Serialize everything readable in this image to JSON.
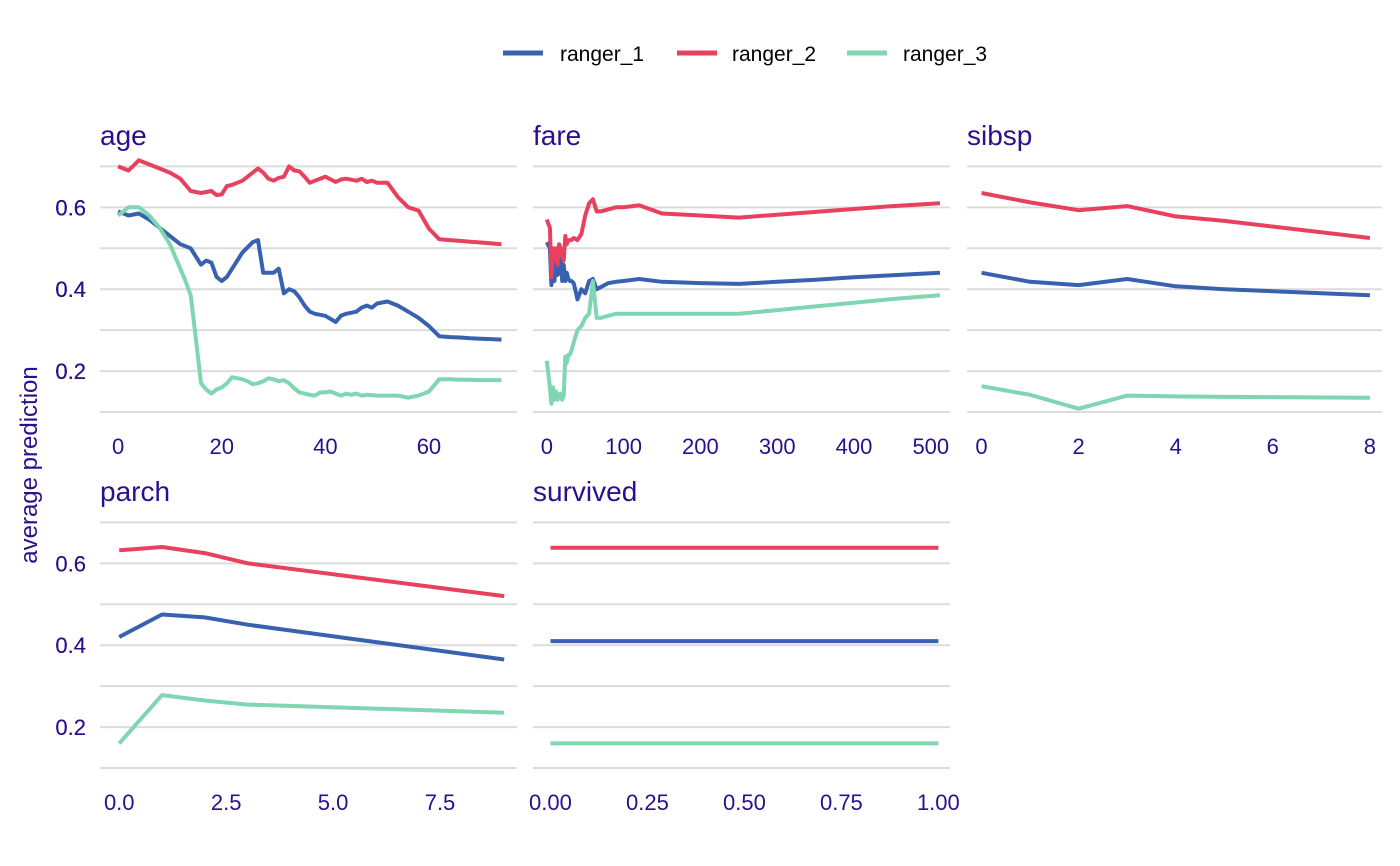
{
  "chart_data": {
    "type": "line",
    "ylabel": "average prediction",
    "legend": {
      "position": "top",
      "entries": [
        {
          "name": "ranger_1",
          "color": "#3862b0"
        },
        {
          "name": "ranger_2",
          "color": "#e8405f"
        },
        {
          "name": "ranger_3",
          "color": "#7fd6b0"
        }
      ]
    },
    "ylim": [
      0.1,
      0.745
    ],
    "y_ticks": [
      0.2,
      0.4,
      0.6
    ],
    "y_tick_labels": [
      "0.2",
      "0.4",
      "0.6"
    ],
    "grid": true,
    "panels": [
      {
        "title": "age",
        "xlim": [
          -3.5,
          77
        ],
        "x_ticks": [
          0,
          20,
          40,
          60
        ],
        "x_tick_labels": [
          "0",
          "20",
          "40",
          "60"
        ],
        "series": [
          {
            "name": "ranger_1",
            "x": [
              0,
              2,
              4,
              6,
              8,
              10,
              12,
              14,
              16,
              17,
              18,
              19,
              20,
              21,
              22,
              24,
              26,
              27,
              28,
              29,
              30,
              31,
              32,
              33,
              34,
              35,
              36,
              37,
              38,
              40,
              42,
              43,
              44,
              46,
              47,
              48,
              49,
              50,
              52,
              54,
              56,
              58,
              60,
              62,
              64,
              66,
              68,
              70,
              72,
              74
            ],
            "y": [
              0.59,
              0.58,
              0.585,
              0.57,
              0.55,
              0.53,
              0.51,
              0.5,
              0.46,
              0.47,
              0.465,
              0.43,
              0.42,
              0.43,
              0.45,
              0.49,
              0.515,
              0.52,
              0.44,
              0.44,
              0.44,
              0.45,
              0.39,
              0.4,
              0.395,
              0.38,
              0.36,
              0.345,
              0.34,
              0.335,
              0.32,
              0.335,
              0.34,
              0.345,
              0.355,
              0.36,
              0.355,
              0.365,
              0.37,
              0.36,
              0.345,
              0.33,
              0.31,
              0.285,
              0.283,
              0.282,
              0.28,
              0.279,
              0.278,
              0.277
            ]
          },
          {
            "name": "ranger_2",
            "x": [
              0,
              2,
              4,
              6,
              8,
              10,
              12,
              14,
              16,
              18,
              19,
              20,
              21,
              22,
              24,
              26,
              27,
              28,
              29,
              30,
              31,
              32,
              33,
              34,
              35,
              36,
              37,
              38,
              40,
              42,
              43,
              44,
              46,
              47,
              48,
              49,
              50,
              52,
              54,
              56,
              58,
              60,
              62,
              64,
              66,
              68,
              70,
              72,
              74
            ],
            "y": [
              0.7,
              0.69,
              0.715,
              0.705,
              0.695,
              0.685,
              0.67,
              0.64,
              0.635,
              0.64,
              0.63,
              0.632,
              0.652,
              0.655,
              0.665,
              0.685,
              0.695,
              0.685,
              0.67,
              0.665,
              0.672,
              0.675,
              0.7,
              0.69,
              0.688,
              0.675,
              0.66,
              0.665,
              0.675,
              0.662,
              0.668,
              0.67,
              0.665,
              0.67,
              0.662,
              0.665,
              0.66,
              0.66,
              0.625,
              0.6,
              0.592,
              0.548,
              0.522,
              0.52,
              0.518,
              0.516,
              0.514,
              0.512,
              0.51
            ]
          },
          {
            "name": "ranger_3",
            "x": [
              0,
              2,
              4,
              6,
              8,
              10,
              12,
              13,
              14,
              15,
              16,
              17,
              18,
              19,
              20,
              21,
              22,
              24,
              25,
              26,
              27,
              28,
              29,
              30,
              31,
              32,
              33,
              34,
              35,
              36,
              37,
              38,
              39,
              40,
              41,
              42,
              43,
              44,
              45,
              46,
              47,
              48,
              50,
              52,
              54,
              56,
              58,
              60,
              62,
              64,
              66,
              68,
              70,
              72,
              74
            ],
            "y": [
              0.58,
              0.6,
              0.6,
              0.58,
              0.55,
              0.51,
              0.45,
              0.42,
              0.385,
              0.28,
              0.17,
              0.155,
              0.145,
              0.155,
              0.16,
              0.17,
              0.185,
              0.18,
              0.175,
              0.168,
              0.17,
              0.175,
              0.182,
              0.18,
              0.175,
              0.178,
              0.17,
              0.158,
              0.148,
              0.145,
              0.142,
              0.14,
              0.148,
              0.148,
              0.15,
              0.145,
              0.14,
              0.145,
              0.142,
              0.145,
              0.14,
              0.142,
              0.14,
              0.14,
              0.14,
              0.135,
              0.14,
              0.15,
              0.18,
              0.18,
              0.179,
              0.179,
              0.178,
              0.178,
              0.178
            ]
          }
        ]
      },
      {
        "title": "fare",
        "xlim": [
          -18,
          525
        ],
        "x_ticks": [
          0,
          100,
          200,
          300,
          400,
          500
        ],
        "x_tick_labels": [
          "0",
          "100",
          "200",
          "300",
          "400",
          "500"
        ],
        "series": [
          {
            "name": "ranger_1",
            "x": [
              0,
              4,
              6,
              8,
              10,
              12,
              14,
              16,
              18,
              20,
              22,
              24,
              26,
              28,
              30,
              32,
              35,
              40,
              45,
              50,
              55,
              60,
              65,
              70,
              80,
              90,
              100,
              120,
              150,
              200,
              250,
              300,
              350,
              400,
              450,
              512
            ],
            "y": [
              0.515,
              0.5,
              0.41,
              0.45,
              0.42,
              0.48,
              0.435,
              0.44,
              0.49,
              0.42,
              0.46,
              0.42,
              0.44,
              0.425,
              0.42,
              0.42,
              0.415,
              0.375,
              0.4,
              0.39,
              0.42,
              0.425,
              0.4,
              0.405,
              0.415,
              0.418,
              0.42,
              0.425,
              0.418,
              0.415,
              0.413,
              0.418,
              0.423,
              0.429,
              0.434,
              0.44
            ]
          },
          {
            "name": "ranger_2",
            "x": [
              0,
              4,
              6,
              8,
              10,
              12,
              14,
              16,
              18,
              20,
              22,
              24,
              26,
              28,
              30,
              32,
              35,
              40,
              45,
              50,
              55,
              60,
              65,
              70,
              80,
              90,
              100,
              120,
              150,
              200,
              250,
              300,
              350,
              400,
              450,
              512
            ],
            "y": [
              0.57,
              0.55,
              0.43,
              0.5,
              0.47,
              0.5,
              0.46,
              0.51,
              0.5,
              0.48,
              0.47,
              0.53,
              0.51,
              0.52,
              0.52,
              0.52,
              0.525,
              0.52,
              0.535,
              0.58,
              0.61,
              0.62,
              0.59,
              0.59,
              0.595,
              0.6,
              0.6,
              0.605,
              0.585,
              0.58,
              0.575,
              0.582,
              0.589,
              0.596,
              0.603,
              0.61
            ]
          },
          {
            "name": "ranger_3",
            "x": [
              0,
              4,
              6,
              8,
              10,
              12,
              14,
              16,
              18,
              20,
              22,
              24,
              26,
              28,
              30,
              32,
              35,
              40,
              45,
              50,
              55,
              60,
              65,
              70,
              80,
              90,
              100,
              120,
              150,
              200,
              250,
              300,
              350,
              400,
              450,
              512
            ],
            "y": [
              0.225,
              0.16,
              0.12,
              0.16,
              0.13,
              0.15,
              0.13,
              0.14,
              0.145,
              0.13,
              0.14,
              0.235,
              0.22,
              0.24,
              0.24,
              0.25,
              0.27,
              0.3,
              0.31,
              0.33,
              0.34,
              0.42,
              0.33,
              0.33,
              0.335,
              0.34,
              0.34,
              0.34,
              0.34,
              0.34,
              0.34,
              0.349,
              0.358,
              0.367,
              0.376,
              0.385
            ]
          }
        ]
      },
      {
        "title": "sibsp",
        "xlim": [
          -0.3,
          8.25
        ],
        "x_ticks": [
          0,
          2,
          4,
          6,
          8
        ],
        "x_tick_labels": [
          "0",
          "2",
          "4",
          "6",
          "8"
        ],
        "series": [
          {
            "name": "ranger_1",
            "x": [
              0,
              1,
              2,
              3,
              4,
              5,
              8
            ],
            "y": [
              0.44,
              0.418,
              0.41,
              0.425,
              0.407,
              0.4,
              0.385
            ]
          },
          {
            "name": "ranger_2",
            "x": [
              0,
              1,
              2,
              3,
              4,
              5,
              8
            ],
            "y": [
              0.635,
              0.612,
              0.593,
              0.603,
              0.578,
              0.567,
              0.525
            ]
          },
          {
            "name": "ranger_3",
            "x": [
              0,
              1,
              2,
              3,
              4,
              5,
              8
            ],
            "y": [
              0.163,
              0.142,
              0.108,
              0.14,
              0.138,
              0.137,
              0.135
            ]
          }
        ]
      },
      {
        "title": "parch",
        "xlim": [
          -0.45,
          9.3
        ],
        "x_ticks": [
          0.0,
          2.5,
          5.0,
          7.5
        ],
        "x_tick_labels": [
          "0.0",
          "2.5",
          "5.0",
          "7.5"
        ],
        "series": [
          {
            "name": "ranger_1",
            "x": [
              0,
              1,
              2,
              3,
              9
            ],
            "y": [
              0.42,
              0.475,
              0.468,
              0.45,
              0.365
            ]
          },
          {
            "name": "ranger_2",
            "x": [
              0,
              1,
              2,
              3,
              9
            ],
            "y": [
              0.632,
              0.64,
              0.625,
              0.6,
              0.52
            ]
          },
          {
            "name": "ranger_3",
            "x": [
              0,
              1,
              2,
              3,
              9
            ],
            "y": [
              0.16,
              0.278,
              0.265,
              0.255,
              0.235
            ]
          }
        ]
      },
      {
        "title": "survived",
        "xlim": [
          -0.045,
          1.03
        ],
        "x_ticks": [
          0.0,
          0.25,
          0.5,
          0.75,
          1.0
        ],
        "x_tick_labels": [
          "0.00",
          "0.25",
          "0.50",
          "0.75",
          "1.00"
        ],
        "series": [
          {
            "name": "ranger_1",
            "x": [
              0,
              1
            ],
            "y": [
              0.41,
              0.41
            ]
          },
          {
            "name": "ranger_2",
            "x": [
              0,
              1
            ],
            "y": [
              0.638,
              0.638
            ]
          },
          {
            "name": "ranger_3",
            "x": [
              0,
              1
            ],
            "y": [
              0.16,
              0.16
            ]
          }
        ]
      }
    ]
  }
}
